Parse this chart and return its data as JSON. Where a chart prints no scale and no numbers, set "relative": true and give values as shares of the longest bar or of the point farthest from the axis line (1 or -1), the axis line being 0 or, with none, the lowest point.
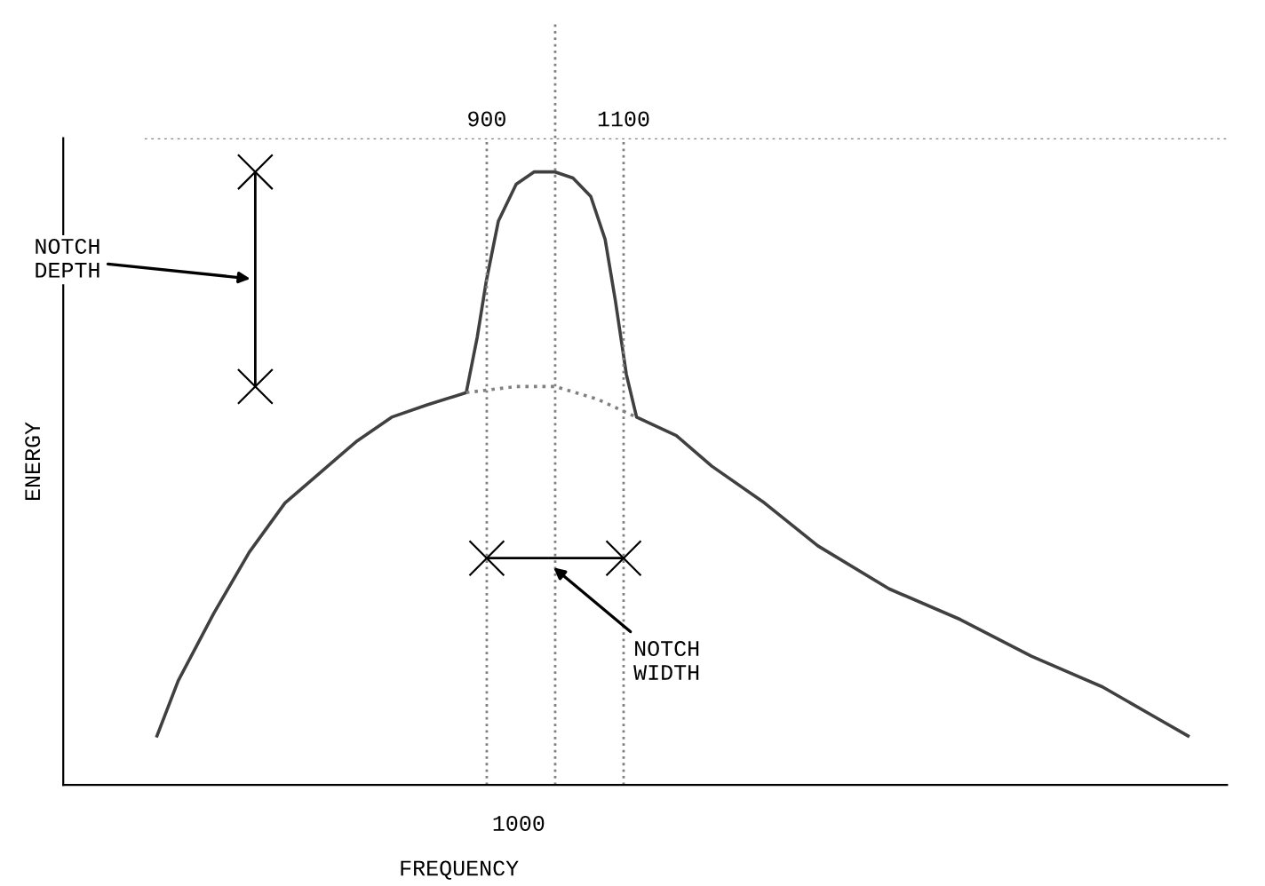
{
  "chart_data": {
    "type": "line",
    "relative": true,
    "xlabel": "FREQUENCY",
    "ylabel": "ENERGY",
    "xlim": [
      281,
      1982
    ],
    "xticks": [
      900,
      1100
    ],
    "series": [
      {
        "color": "#404040",
        "line_style": "solid",
        "x": [
          418,
          449,
          501,
          553,
          605,
          657,
          709,
          761,
          813,
          870,
          886,
          899,
          917,
          943,
          969,
          1000,
          1026,
          1052,
          1073,
          1088,
          1104,
          1119,
          1177,
          1229,
          1306,
          1384,
          1488,
          1592,
          1696,
          1800,
          1878,
          1925
        ],
        "values": [
          0.08,
          0.17,
          0.28,
          0.38,
          0.46,
          0.51,
          0.56,
          0.6,
          0.62,
          0.64,
          0.73,
          0.82,
          0.92,
          0.98,
          1.0,
          1.0,
          0.99,
          0.96,
          0.89,
          0.79,
          0.67,
          0.6,
          0.57,
          0.52,
          0.46,
          0.39,
          0.32,
          0.27,
          0.21,
          0.16,
          0.11,
          0.08
        ]
      },
      {
        "color": "#808080",
        "line_style": "dotted",
        "x": [
          870,
          943,
          1000,
          1060,
          1119
        ],
        "values": [
          0.64,
          0.65,
          0.65,
          0.63,
          0.6
        ]
      }
    ],
    "ref_lines": [
      {
        "axis": "x",
        "value": 900,
        "line_style": "dotted",
        "color": "#808080"
      },
      {
        "axis": "x",
        "value": 1100,
        "line_style": "dotted",
        "color": "#808080"
      },
      {
        "axis": "x",
        "value": 1000,
        "label": "1000",
        "line_style": "dotted",
        "color": "#808080"
      },
      {
        "axis": "y",
        "value": 1.055,
        "line_style": "dotted",
        "color": "#808080"
      }
    ],
    "annotations": [
      "NOTCH DEPTH",
      "NOTCH WIDTH"
    ],
    "legend": false
  }
}
